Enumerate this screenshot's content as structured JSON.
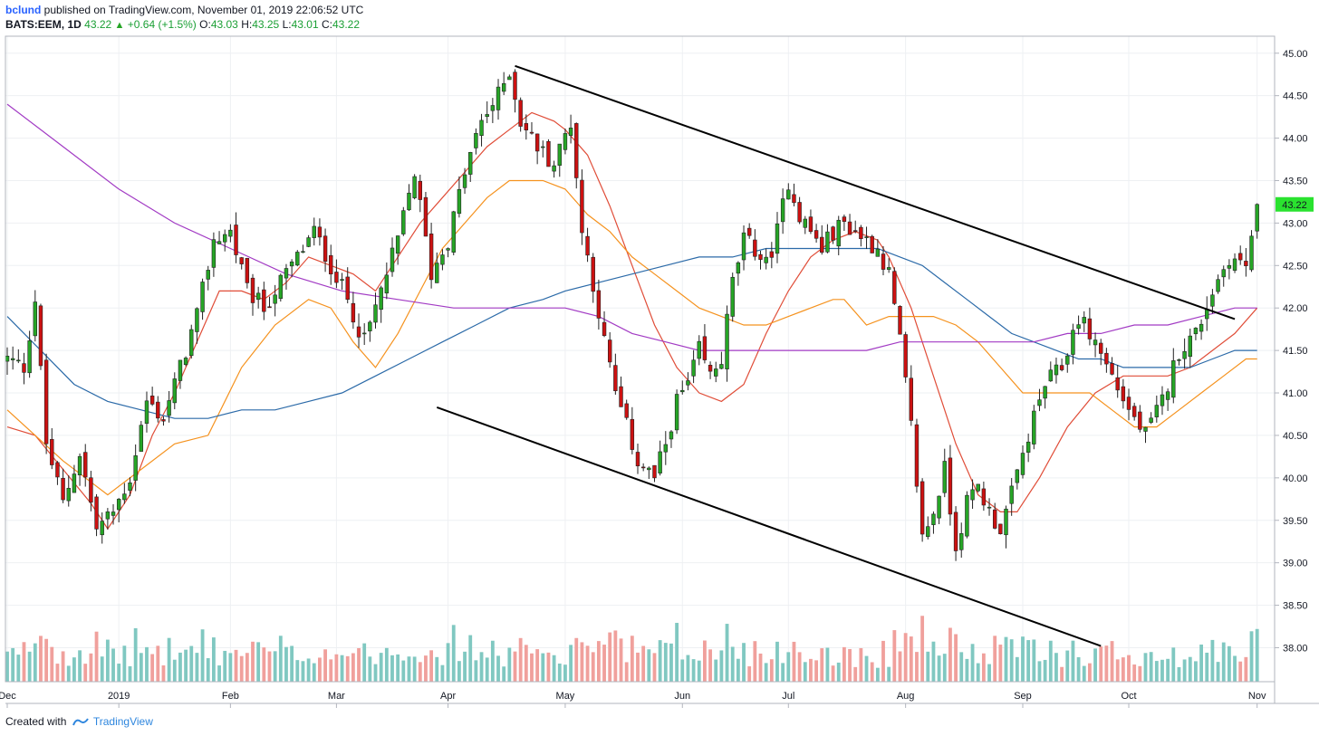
{
  "header": {
    "user": "bclund",
    "published": "published on TradingView.com, November 01, 2019 22:06:52 UTC",
    "symbol": "BATS:EEM, 1D",
    "last": "43.22",
    "change": "+0.64 (+1.5%)",
    "o_label": "O:",
    "o_value": "43.03",
    "h_label": "H:",
    "h_value": "43.25",
    "l_label": "L:",
    "l_value": "43.01",
    "c_label": "C:",
    "c_value": "43.22"
  },
  "footer": {
    "created": "Created with",
    "brand": "TradingView"
  },
  "colors": {
    "up": "#26a526",
    "down": "#cc1111",
    "volume_up": "#80c8c1",
    "volume_down": "#f0a09c",
    "sma20": "#e04d38",
    "sma50": "#f5921e",
    "sma100": "#2b6aa8",
    "sma200": "#a23bc4",
    "trendline": "#000000",
    "last_price_bg": "#2ae22f"
  },
  "chart_data": {
    "type": "candlestick",
    "symbol": "BATS:EEM",
    "interval": "1D",
    "ylim": [
      37.6,
      45.2
    ],
    "y_ticks": [
      "45.00",
      "44.50",
      "44.00",
      "43.50",
      "43.00",
      "42.50",
      "42.00",
      "41.50",
      "41.00",
      "40.50",
      "40.00",
      "39.50",
      "39.00",
      "38.50",
      "38.00"
    ],
    "x_ticks": [
      {
        "label": "Dec",
        "day": 0
      },
      {
        "label": "2019",
        "day": 20
      },
      {
        "label": "Feb",
        "day": 40
      },
      {
        "label": "Mar",
        "day": 59
      },
      {
        "label": "Apr",
        "day": 79
      },
      {
        "label": "May",
        "day": 100
      },
      {
        "label": "Jun",
        "day": 121
      },
      {
        "label": "Jul",
        "day": 140
      },
      {
        "label": "Aug",
        "day": 161
      },
      {
        "label": "Sep",
        "day": 182
      },
      {
        "label": "Oct",
        "day": 201
      },
      {
        "label": "Nov",
        "day": 224
      }
    ],
    "last_price_label": "43.22",
    "closes": [
      [
        0,
        41.4
      ],
      [
        3,
        41.3
      ],
      [
        5,
        42.1
      ],
      [
        7,
        40.4
      ],
      [
        10,
        39.7
      ],
      [
        13,
        40.3
      ],
      [
        16,
        39.4
      ],
      [
        19,
        39.6
      ],
      [
        22,
        40.0
      ],
      [
        25,
        40.9
      ],
      [
        28,
        40.7
      ],
      [
        31,
        41.3
      ],
      [
        34,
        41.9
      ],
      [
        37,
        42.8
      ],
      [
        40,
        42.9
      ],
      [
        43,
        42.2
      ],
      [
        46,
        42.0
      ],
      [
        49,
        42.3
      ],
      [
        52,
        42.6
      ],
      [
        55,
        42.9
      ],
      [
        58,
        42.5
      ],
      [
        61,
        42.1
      ],
      [
        64,
        41.6
      ],
      [
        67,
        42.2
      ],
      [
        70,
        42.8
      ],
      [
        73,
        43.6
      ],
      [
        76,
        42.4
      ],
      [
        79,
        42.8
      ],
      [
        82,
        43.6
      ],
      [
        85,
        44.2
      ],
      [
        88,
        44.5
      ],
      [
        90,
        44.8
      ],
      [
        92,
        44.2
      ],
      [
        95,
        43.9
      ],
      [
        98,
        43.7
      ],
      [
        101,
        44.2
      ],
      [
        103,
        42.9
      ],
      [
        105,
        42.3
      ],
      [
        107,
        41.6
      ],
      [
        109,
        41.0
      ],
      [
        111,
        40.6
      ],
      [
        113,
        40.2
      ],
      [
        116,
        40.0
      ],
      [
        118,
        40.4
      ],
      [
        120,
        40.9
      ],
      [
        122,
        41.1
      ],
      [
        124,
        41.5
      ],
      [
        126,
        41.2
      ],
      [
        128,
        41.4
      ],
      [
        130,
        42.3
      ],
      [
        132,
        42.8
      ],
      [
        134,
        42.7
      ],
      [
        136,
        42.5
      ],
      [
        138,
        42.9
      ],
      [
        140,
        43.5
      ],
      [
        142,
        43.1
      ],
      [
        144,
        42.9
      ],
      [
        146,
        42.7
      ],
      [
        148,
        42.9
      ],
      [
        150,
        43.0
      ],
      [
        152,
        42.9
      ],
      [
        154,
        42.8
      ],
      [
        156,
        42.7
      ],
      [
        158,
        42.4
      ],
      [
        160,
        41.6
      ],
      [
        162,
        40.6
      ],
      [
        164,
        39.3
      ],
      [
        166,
        39.6
      ],
      [
        168,
        40.1
      ],
      [
        170,
        39.2
      ],
      [
        172,
        39.7
      ],
      [
        174,
        39.9
      ],
      [
        176,
        39.6
      ],
      [
        178,
        39.4
      ],
      [
        180,
        39.8
      ],
      [
        183,
        40.5
      ],
      [
        186,
        41.1
      ],
      [
        189,
        41.3
      ],
      [
        192,
        41.9
      ],
      [
        195,
        41.6
      ],
      [
        198,
        41.2
      ],
      [
        201,
        40.8
      ],
      [
        204,
        40.5
      ],
      [
        207,
        40.9
      ],
      [
        210,
        41.5
      ],
      [
        213,
        41.7
      ],
      [
        216,
        42.2
      ],
      [
        219,
        42.6
      ],
      [
        222,
        42.5
      ],
      [
        224,
        43.22
      ]
    ],
    "volume_scale": [
      0,
      15
    ],
    "sma": [
      {
        "period": 20,
        "color": "#e04d38",
        "points": [
          [
            0,
            40.6
          ],
          [
            5,
            40.5
          ],
          [
            10,
            40.1
          ],
          [
            15,
            39.7
          ],
          [
            18,
            39.4
          ],
          [
            22,
            39.8
          ],
          [
            26,
            40.5
          ],
          [
            30,
            41.0
          ],
          [
            34,
            41.6
          ],
          [
            38,
            42.2
          ],
          [
            42,
            42.2
          ],
          [
            46,
            42.1
          ],
          [
            50,
            42.3
          ],
          [
            54,
            42.6
          ],
          [
            58,
            42.5
          ],
          [
            62,
            42.4
          ],
          [
            66,
            42.2
          ],
          [
            70,
            42.6
          ],
          [
            74,
            43.0
          ],
          [
            78,
            43.3
          ],
          [
            82,
            43.6
          ],
          [
            86,
            43.9
          ],
          [
            90,
            44.1
          ],
          [
            94,
            44.3
          ],
          [
            98,
            44.2
          ],
          [
            100,
            44.1
          ],
          [
            104,
            43.8
          ],
          [
            108,
            43.2
          ],
          [
            112,
            42.5
          ],
          [
            116,
            41.8
          ],
          [
            120,
            41.3
          ],
          [
            124,
            41.0
          ],
          [
            128,
            40.9
          ],
          [
            132,
            41.1
          ],
          [
            136,
            41.7
          ],
          [
            140,
            42.2
          ],
          [
            144,
            42.6
          ],
          [
            148,
            42.8
          ],
          [
            152,
            42.9
          ],
          [
            156,
            42.8
          ],
          [
            158,
            42.6
          ],
          [
            162,
            42.0
          ],
          [
            166,
            41.2
          ],
          [
            170,
            40.4
          ],
          [
            174,
            39.8
          ],
          [
            178,
            39.6
          ],
          [
            181,
            39.6
          ],
          [
            185,
            40.0
          ],
          [
            190,
            40.6
          ],
          [
            195,
            41.0
          ],
          [
            200,
            41.2
          ],
          [
            204,
            41.2
          ],
          [
            208,
            41.2
          ],
          [
            212,
            41.3
          ],
          [
            216,
            41.5
          ],
          [
            220,
            41.7
          ],
          [
            224,
            42.0
          ]
        ]
      },
      {
        "period": 50,
        "color": "#f5921e",
        "points": [
          [
            0,
            40.8
          ],
          [
            10,
            40.2
          ],
          [
            18,
            39.8
          ],
          [
            24,
            40.1
          ],
          [
            30,
            40.4
          ],
          [
            36,
            40.5
          ],
          [
            42,
            41.3
          ],
          [
            48,
            41.8
          ],
          [
            54,
            42.1
          ],
          [
            58,
            42.0
          ],
          [
            62,
            41.6
          ],
          [
            66,
            41.3
          ],
          [
            70,
            41.7
          ],
          [
            74,
            42.2
          ],
          [
            78,
            42.7
          ],
          [
            82,
            43.0
          ],
          [
            86,
            43.3
          ],
          [
            90,
            43.5
          ],
          [
            96,
            43.5
          ],
          [
            100,
            43.4
          ],
          [
            104,
            43.1
          ],
          [
            108,
            42.9
          ],
          [
            112,
            42.6
          ],
          [
            116,
            42.4
          ],
          [
            120,
            42.2
          ],
          [
            124,
            42.0
          ],
          [
            128,
            41.9
          ],
          [
            132,
            41.8
          ],
          [
            136,
            41.8
          ],
          [
            140,
            41.9
          ],
          [
            144,
            42.0
          ],
          [
            148,
            42.1
          ],
          [
            150,
            42.1
          ],
          [
            154,
            41.8
          ],
          [
            158,
            41.9
          ],
          [
            162,
            41.9
          ],
          [
            166,
            41.9
          ],
          [
            170,
            41.8
          ],
          [
            174,
            41.6
          ],
          [
            178,
            41.3
          ],
          [
            182,
            41.0
          ],
          [
            186,
            41.0
          ],
          [
            190,
            41.0
          ],
          [
            194,
            41.0
          ],
          [
            198,
            40.8
          ],
          [
            202,
            40.6
          ],
          [
            206,
            40.6
          ],
          [
            210,
            40.8
          ],
          [
            214,
            41.0
          ],
          [
            218,
            41.2
          ],
          [
            222,
            41.4
          ],
          [
            224,
            41.4
          ]
        ]
      },
      {
        "period": 100,
        "color": "#2b6aa8",
        "points": [
          [
            0,
            41.9
          ],
          [
            6,
            41.5
          ],
          [
            12,
            41.1
          ],
          [
            18,
            40.9
          ],
          [
            24,
            40.8
          ],
          [
            30,
            40.7
          ],
          [
            36,
            40.7
          ],
          [
            42,
            40.8
          ],
          [
            48,
            40.8
          ],
          [
            54,
            40.9
          ],
          [
            60,
            41.0
          ],
          [
            66,
            41.2
          ],
          [
            72,
            41.4
          ],
          [
            78,
            41.6
          ],
          [
            84,
            41.8
          ],
          [
            90,
            42.0
          ],
          [
            96,
            42.1
          ],
          [
            100,
            42.2
          ],
          [
            106,
            42.3
          ],
          [
            112,
            42.4
          ],
          [
            118,
            42.5
          ],
          [
            124,
            42.6
          ],
          [
            130,
            42.6
          ],
          [
            136,
            42.7
          ],
          [
            142,
            42.7
          ],
          [
            148,
            42.7
          ],
          [
            152,
            42.7
          ],
          [
            156,
            42.7
          ],
          [
            160,
            42.6
          ],
          [
            164,
            42.5
          ],
          [
            168,
            42.3
          ],
          [
            172,
            42.1
          ],
          [
            176,
            41.9
          ],
          [
            180,
            41.7
          ],
          [
            184,
            41.6
          ],
          [
            188,
            41.5
          ],
          [
            192,
            41.4
          ],
          [
            196,
            41.4
          ],
          [
            200,
            41.3
          ],
          [
            204,
            41.3
          ],
          [
            208,
            41.3
          ],
          [
            212,
            41.3
          ],
          [
            216,
            41.4
          ],
          [
            220,
            41.5
          ],
          [
            224,
            41.5
          ]
        ]
      },
      {
        "period": 200,
        "color": "#a23bc4",
        "points": [
          [
            0,
            44.4
          ],
          [
            10,
            43.9
          ],
          [
            20,
            43.4
          ],
          [
            30,
            43.0
          ],
          [
            40,
            42.7
          ],
          [
            50,
            42.4
          ],
          [
            60,
            42.2
          ],
          [
            70,
            42.1
          ],
          [
            80,
            42.0
          ],
          [
            90,
            42.0
          ],
          [
            100,
            42.0
          ],
          [
            106,
            41.9
          ],
          [
            112,
            41.7
          ],
          [
            118,
            41.6
          ],
          [
            124,
            41.5
          ],
          [
            130,
            41.5
          ],
          [
            136,
            41.5
          ],
          [
            142,
            41.5
          ],
          [
            148,
            41.5
          ],
          [
            154,
            41.5
          ],
          [
            160,
            41.6
          ],
          [
            166,
            41.6
          ],
          [
            172,
            41.6
          ],
          [
            178,
            41.6
          ],
          [
            184,
            41.6
          ],
          [
            190,
            41.7
          ],
          [
            196,
            41.7
          ],
          [
            202,
            41.8
          ],
          [
            208,
            41.8
          ],
          [
            214,
            41.9
          ],
          [
            220,
            42.0
          ],
          [
            224,
            42.0
          ]
        ]
      }
    ],
    "trendlines": [
      {
        "from": [
          91,
          44.85
        ],
        "to": [
          220,
          41.87
        ]
      },
      {
        "from": [
          77,
          40.83
        ],
        "to": [
          196,
          38.02
        ]
      }
    ]
  }
}
